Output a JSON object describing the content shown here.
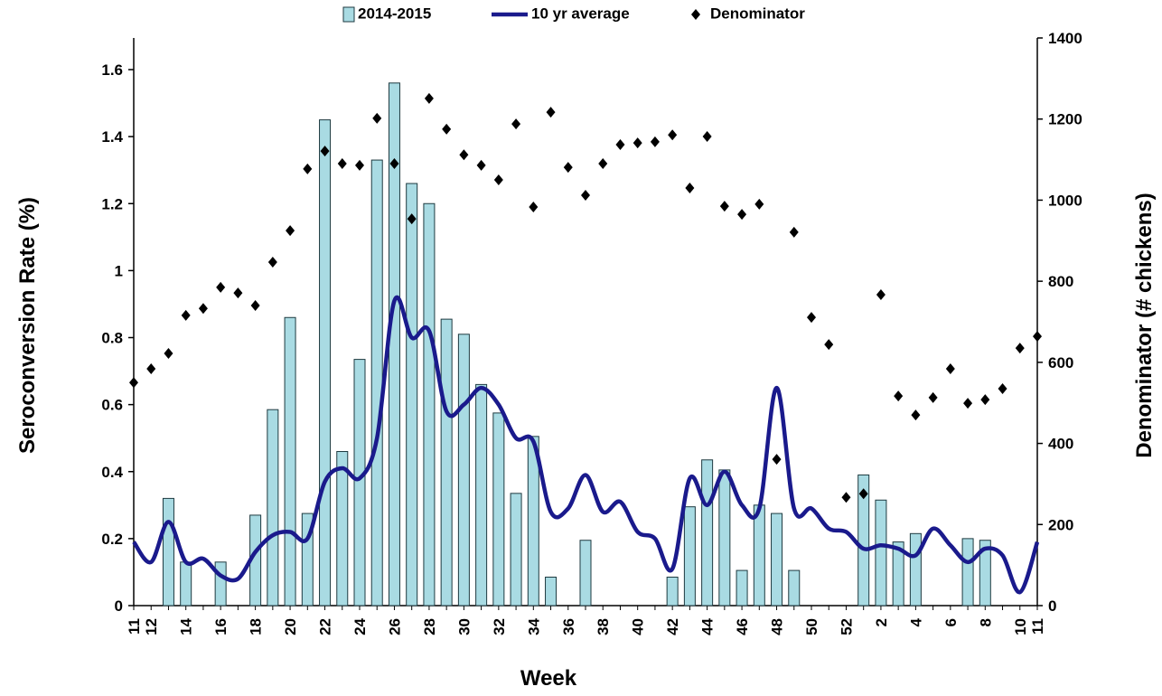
{
  "chart_data": {
    "type": "combo",
    "x_label": "Week",
    "y_label": "Seroconversion Rate (%)",
    "y2_label": "Denominator (# chickens)",
    "categories": [
      "11",
      "12",
      null,
      "14",
      null,
      "16",
      null,
      "18",
      null,
      "20",
      null,
      "22",
      null,
      "24",
      null,
      "26",
      null,
      "28",
      null,
      "30",
      null,
      "32",
      null,
      "34",
      null,
      "36",
      null,
      "38",
      null,
      "40",
      null,
      "42",
      null,
      "44",
      null,
      "46",
      null,
      "48",
      null,
      "50",
      null,
      "52",
      null,
      "2",
      null,
      "4",
      null,
      "6",
      null,
      "8",
      null,
      "10",
      "11"
    ],
    "series": [
      {
        "name": "2014-2015",
        "type": "bar",
        "color": "#a9dbe3",
        "values": [
          null,
          null,
          0.32,
          0.13,
          null,
          0.13,
          null,
          0.27,
          0.585,
          0.86,
          0.275,
          1.45,
          0.46,
          0.735,
          1.33,
          1.56,
          1.26,
          1.2,
          0.855,
          0.81,
          0.66,
          0.575,
          0.335,
          0.505,
          0.085,
          null,
          0.195,
          null,
          null,
          null,
          null,
          0.085,
          0.295,
          0.435,
          0.405,
          0.105,
          0.3,
          0.275,
          0.105,
          null,
          null,
          null,
          0.39,
          0.315,
          0.19,
          0.215,
          null,
          null,
          0.2,
          0.195,
          null,
          null,
          null
        ]
      },
      {
        "name": "10 yr average",
        "type": "line",
        "color": "#1a1a8c",
        "values": [
          0.19,
          0.13,
          0.25,
          0.13,
          0.14,
          0.09,
          0.08,
          0.16,
          0.21,
          0.22,
          0.2,
          0.37,
          0.41,
          0.38,
          0.5,
          0.91,
          0.8,
          0.82,
          0.58,
          0.6,
          0.65,
          0.6,
          0.5,
          0.49,
          0.28,
          0.29,
          0.39,
          0.28,
          0.31,
          0.22,
          0.2,
          0.11,
          0.38,
          0.3,
          0.4,
          0.3,
          0.29,
          0.65,
          0.29,
          0.29,
          0.23,
          0.22,
          0.17,
          0.18,
          0.17,
          0.15,
          0.23,
          0.18,
          0.13,
          0.17,
          0.15,
          0.04,
          0.19
        ]
      },
      {
        "name": "Denominator",
        "type": "scatter",
        "axis": "y2",
        "color": "#000000",
        "values": [
          550,
          584,
          622,
          716,
          733,
          785,
          771,
          740,
          847,
          925,
          1077,
          1121,
          1090,
          1086,
          1202,
          1090,
          954,
          1251,
          1175,
          1112,
          1086,
          1050,
          1188,
          983,
          1217,
          1081,
          1012,
          1090,
          1137,
          1141,
          1144,
          1161,
          1030,
          1157,
          985,
          965,
          990,
          361,
          921,
          711,
          644,
          267,
          276,
          767,
          517,
          470,
          513,
          584,
          499,
          508,
          535,
          635,
          664
        ]
      }
    ],
    "ylim": [
      0,
      1.7
    ],
    "yticks": [
      0,
      0.2,
      0.4,
      0.6,
      0.8,
      1,
      1.2,
      1.4,
      1.6
    ],
    "y2lim": [
      0,
      1400
    ],
    "y2ticks": [
      0,
      200,
      400,
      600,
      800,
      1000,
      1200,
      1400
    ],
    "legend": "top"
  }
}
